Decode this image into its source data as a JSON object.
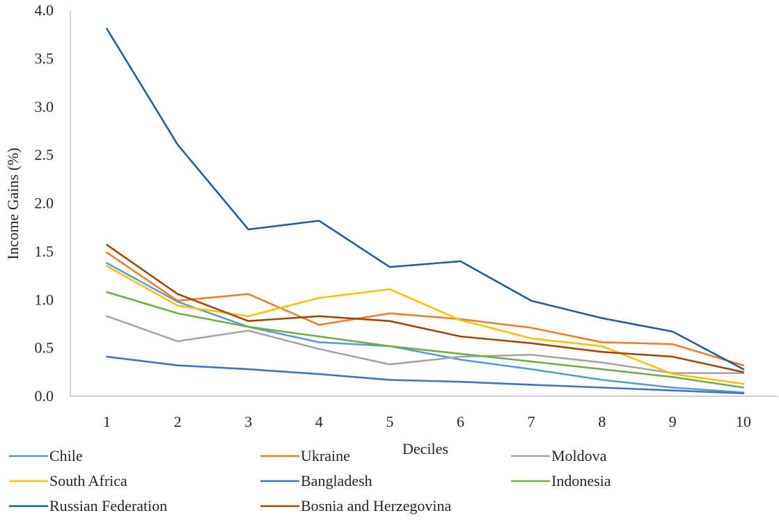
{
  "chart_data": {
    "type": "line",
    "title": "",
    "xlabel": "Deciles",
    "ylabel": "Income Gains (%)",
    "x": [
      1,
      2,
      3,
      4,
      5,
      6,
      7,
      8,
      9,
      10
    ],
    "xticks": [
      "1",
      "2",
      "3",
      "4",
      "5",
      "6",
      "7",
      "8",
      "9",
      "10"
    ],
    "yticks": [
      "0.0",
      "0.5",
      "1.0",
      "1.5",
      "2.0",
      "2.5",
      "3.0",
      "3.5",
      "4.0"
    ],
    "ylim": [
      0,
      4
    ],
    "grid": false,
    "legend_position": "bottom",
    "series": [
      {
        "name": "Chile",
        "color": "#5b9bd5",
        "values": [
          1.38,
          0.98,
          0.72,
          0.56,
          0.52,
          0.38,
          0.28,
          0.17,
          0.09,
          0.04
        ]
      },
      {
        "name": "Ukraine",
        "color": "#ed7d31",
        "values": [
          1.49,
          0.99,
          1.06,
          0.74,
          0.86,
          0.8,
          0.71,
          0.56,
          0.54,
          0.32
        ]
      },
      {
        "name": "Moldova",
        "color": "#a5a5a5",
        "values": [
          0.83,
          0.57,
          0.68,
          0.49,
          0.33,
          0.41,
          0.43,
          0.35,
          0.24,
          0.24
        ]
      },
      {
        "name": "South Africa",
        "color": "#ffc000",
        "values": [
          1.35,
          0.94,
          0.83,
          1.02,
          1.11,
          0.79,
          0.6,
          0.52,
          0.23,
          0.13
        ]
      },
      {
        "name": "Bangladesh",
        "color": "#4472c4",
        "values": [
          0.41,
          0.32,
          0.28,
          0.23,
          0.17,
          0.15,
          0.12,
          0.09,
          0.06,
          0.03
        ]
      },
      {
        "name": "Indonesia",
        "color": "#70ad47",
        "values": [
          1.08,
          0.86,
          0.72,
          0.62,
          0.52,
          0.44,
          0.36,
          0.28,
          0.2,
          0.09
        ]
      },
      {
        "name": "Russian Federation",
        "color": "#255e91",
        "values": [
          3.81,
          2.61,
          1.73,
          1.82,
          1.34,
          1.4,
          0.99,
          0.81,
          0.67,
          0.28
        ]
      },
      {
        "name": "Bosnia and Herzegovina",
        "color": "#9e480e",
        "values": [
          1.57,
          1.06,
          0.78,
          0.83,
          0.78,
          0.62,
          0.55,
          0.46,
          0.41,
          0.25
        ]
      }
    ]
  }
}
